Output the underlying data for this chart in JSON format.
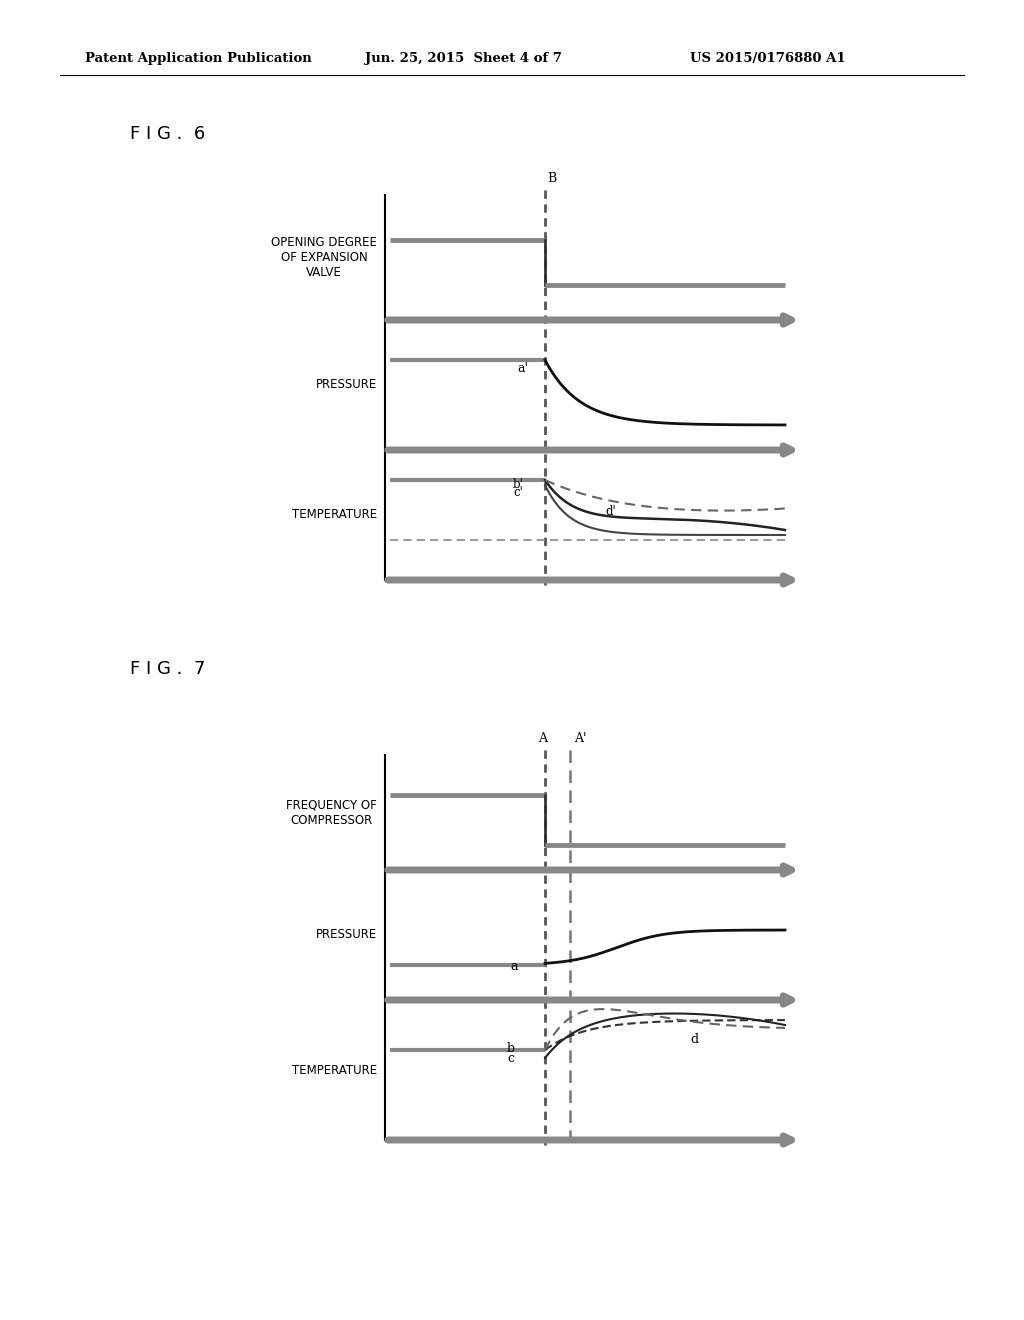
{
  "bg_color": "#ffffff",
  "header_text": "Patent Application Publication",
  "header_date": "Jun. 25, 2015  Sheet 4 of 7",
  "header_patent": "US 2015/0176880 A1",
  "fig6_label": "F I G .  6",
  "fig7_label": "F I G .  7",
  "fig6_B_label": "B",
  "fig7_A_label": "A",
  "fig7_Aprime_label": "A'",
  "label_opening": "OPENING DEGREE\nOF EXPANSION\nVALVE",
  "label_pressure": "PRESSURE",
  "label_temperature": "TEMPERATURE",
  "label_freq": "FREQUENCY OF\nCOMPRESSOR",
  "hatch_color": "#aaaaaa",
  "line_color": "#333333",
  "curve_color": "#111111"
}
